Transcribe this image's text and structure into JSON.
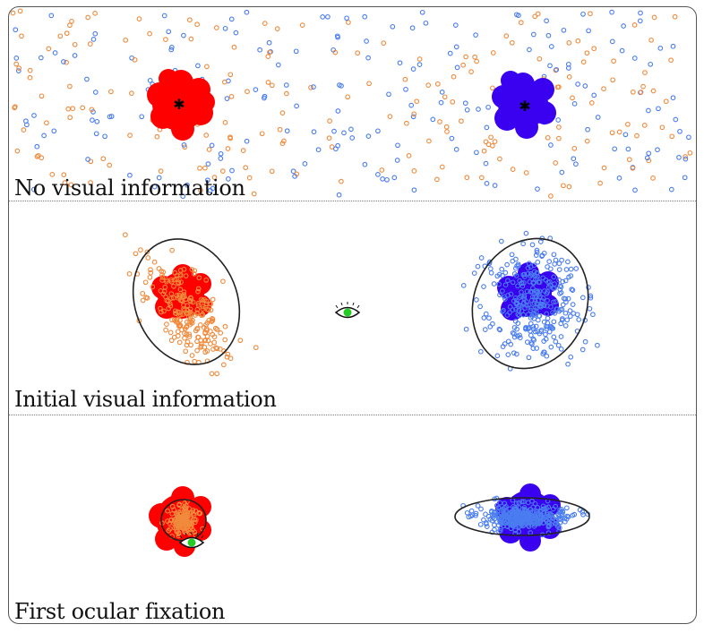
{
  "panels": [
    {
      "id": "no-visual",
      "label": "No visual information",
      "show_gaze": false
    },
    {
      "id": "initial-visual",
      "label": "Initial visual information",
      "show_gaze": true
    },
    {
      "id": "first-fixation",
      "label": "First ocular fixation",
      "show_gaze": true
    }
  ],
  "colors": {
    "target_left": "#ff0000",
    "target_right": "#3a00f0",
    "particles_left": "#f08a3c",
    "particles_right": "#4a7df0",
    "ellipse": "#222222",
    "pupil": "#22cc22",
    "divider": "#777777"
  }
}
